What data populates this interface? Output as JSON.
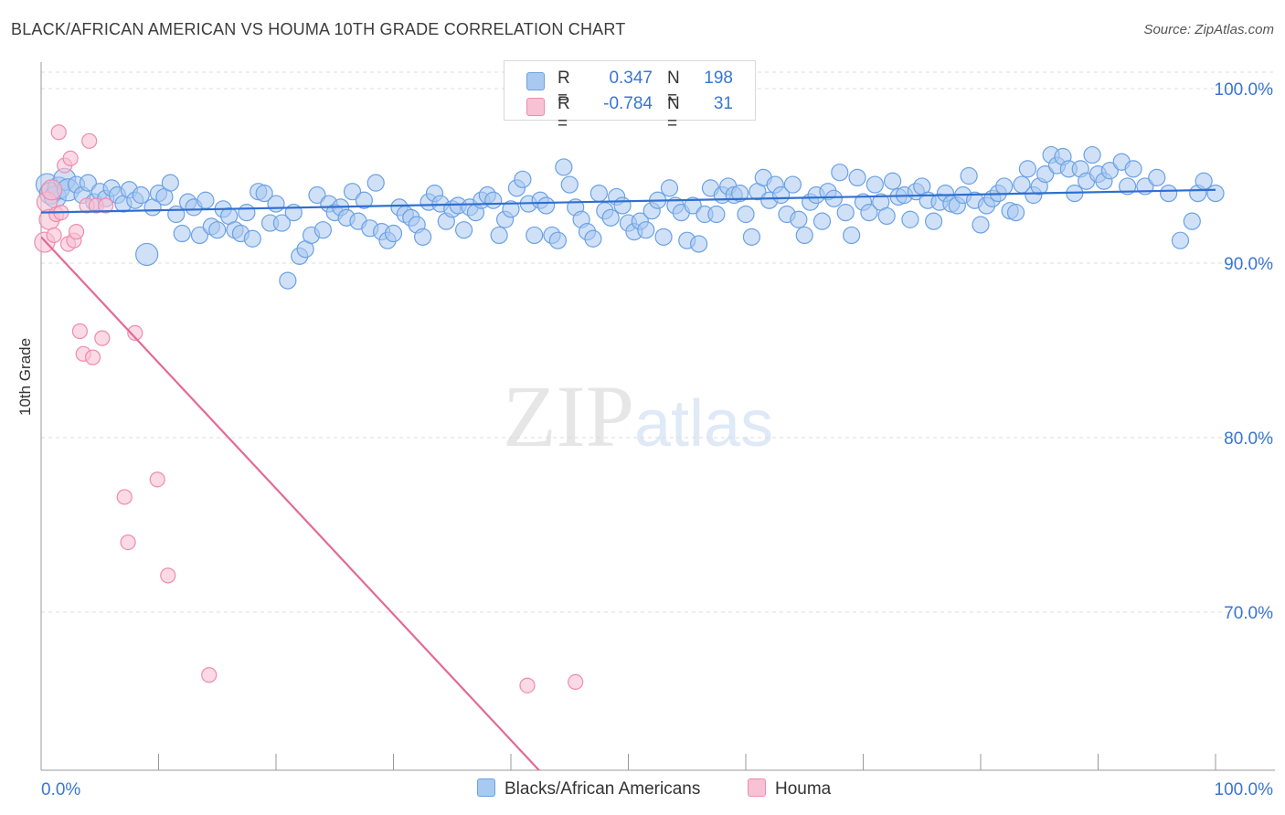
{
  "title": "BLACK/AFRICAN AMERICAN VS HOUMA 10TH GRADE CORRELATION CHART",
  "source": "Source: ZipAtlas.com",
  "watermark": {
    "zip": "ZIP",
    "atlas": "atlas"
  },
  "colors": {
    "blue": "#6aa1e6",
    "blue_fill": "#aac9f0",
    "blue_line": "#2f6fd0",
    "pink": "#f08bad",
    "pink_fill": "#f7c2d4",
    "pink_line": "#e46a95",
    "axis_text": "#3a75d1",
    "grid": "#dcdcdc"
  },
  "legend": {
    "rows": [
      {
        "r_label": "R =",
        "r_value": "0.347",
        "n_label": "N =",
        "n_value": "198"
      },
      {
        "r_label": "R =",
        "r_value": "-0.784",
        "n_label": "N =",
        "n_value": "31"
      }
    ]
  },
  "bottom_legend": {
    "series1": "Blacks/African Americans",
    "series2": "Houma"
  },
  "chart_data": {
    "type": "scatter",
    "ylabel": "10th Grade",
    "x_tick_labels": [
      "0.0%",
      "100.0%"
    ],
    "y_tick_labels": [
      "100.0%",
      "90.0%",
      "80.0%",
      "70.0%"
    ],
    "xlim": [
      0,
      100
    ],
    "ylim": [
      60,
      100
    ],
    "series": [
      {
        "name": "Blacks/African Americans",
        "trend": {
          "x": [
            0,
            100
          ],
          "y": [
            92.9,
            94.2
          ]
        },
        "points": [
          [
            0.5,
            94.5
          ],
          [
            0.8,
            94
          ],
          [
            1.2,
            93.8
          ],
          [
            1.5,
            94.3
          ],
          [
            2,
            94.8
          ],
          [
            2.3,
            94.2
          ],
          [
            3,
            94.5
          ],
          [
            3.5,
            93.9
          ],
          [
            4,
            94.6
          ],
          [
            4.5,
            93.5
          ],
          [
            5,
            94.1
          ],
          [
            5.5,
            93.7
          ],
          [
            6,
            94.3
          ],
          [
            6.5,
            93.9
          ],
          [
            7,
            93.4
          ],
          [
            7.5,
            94.2
          ],
          [
            8,
            93.6
          ],
          [
            8.5,
            93.9
          ],
          [
            9,
            90.5
          ],
          [
            9.5,
            93.2
          ],
          [
            10,
            94
          ],
          [
            10.5,
            93.8
          ],
          [
            11,
            94.6
          ],
          [
            11.5,
            92.8
          ],
          [
            12,
            91.7
          ],
          [
            12.5,
            93.5
          ],
          [
            13,
            93.2
          ],
          [
            13.5,
            91.6
          ],
          [
            14,
            93.6
          ],
          [
            14.5,
            92.1
          ],
          [
            15,
            91.9
          ],
          [
            15.5,
            93.1
          ],
          [
            16,
            92.7
          ],
          [
            16.5,
            91.9
          ],
          [
            17,
            91.7
          ],
          [
            17.5,
            92.9
          ],
          [
            18,
            91.4
          ],
          [
            18.5,
            94.1
          ],
          [
            19,
            94
          ],
          [
            19.5,
            92.3
          ],
          [
            20,
            93.4
          ],
          [
            20.5,
            92.3
          ],
          [
            21,
            89
          ],
          [
            21.5,
            92.9
          ],
          [
            22,
            90.4
          ],
          [
            22.5,
            90.8
          ],
          [
            23,
            91.6
          ],
          [
            23.5,
            93.9
          ],
          [
            24,
            91.9
          ],
          [
            24.5,
            93.4
          ],
          [
            25,
            92.9
          ],
          [
            25.5,
            93.2
          ],
          [
            26,
            92.6
          ],
          [
            26.5,
            94.1
          ],
          [
            27,
            92.4
          ],
          [
            27.5,
            93.6
          ],
          [
            28,
            92
          ],
          [
            28.5,
            94.6
          ],
          [
            29,
            91.8
          ],
          [
            29.5,
            91.3
          ],
          [
            30,
            91.7
          ],
          [
            30.5,
            93.2
          ],
          [
            31,
            92.8
          ],
          [
            31.5,
            92.6
          ],
          [
            32,
            92.2
          ],
          [
            32.5,
            91.5
          ],
          [
            33,
            93.5
          ],
          [
            33.5,
            94
          ],
          [
            34,
            93.4
          ],
          [
            34.5,
            92.4
          ],
          [
            35,
            93.1
          ],
          [
            35.5,
            93.3
          ],
          [
            36,
            91.9
          ],
          [
            36.5,
            93.2
          ],
          [
            37,
            92.9
          ],
          [
            37.5,
            93.6
          ],
          [
            38,
            93.9
          ],
          [
            38.5,
            93.6
          ],
          [
            39,
            91.6
          ],
          [
            39.5,
            92.5
          ],
          [
            40,
            93.1
          ],
          [
            40.5,
            94.3
          ],
          [
            41,
            94.8
          ],
          [
            41.5,
            93.4
          ],
          [
            42,
            91.6
          ],
          [
            42.5,
            93.6
          ],
          [
            43,
            93.3
          ],
          [
            43.5,
            91.6
          ],
          [
            44,
            91.3
          ],
          [
            44.5,
            95.5
          ],
          [
            45,
            94.5
          ],
          [
            45.5,
            93.2
          ],
          [
            46,
            92.5
          ],
          [
            46.5,
            91.8
          ],
          [
            47,
            91.4
          ],
          [
            47.5,
            94
          ],
          [
            48,
            93
          ],
          [
            48.5,
            92.6
          ],
          [
            49,
            93.8
          ],
          [
            49.5,
            93.3
          ],
          [
            50,
            92.3
          ],
          [
            50.5,
            91.8
          ],
          [
            51,
            92.4
          ],
          [
            51.5,
            91.9
          ],
          [
            52,
            93
          ],
          [
            52.5,
            93.6
          ],
          [
            53,
            91.5
          ],
          [
            53.5,
            94.3
          ],
          [
            54,
            93.3
          ],
          [
            54.5,
            92.9
          ],
          [
            55,
            91.3
          ],
          [
            55.5,
            93.3
          ],
          [
            56,
            91.1
          ],
          [
            56.5,
            92.8
          ],
          [
            57,
            94.3
          ],
          [
            57.5,
            92.8
          ],
          [
            58,
            93.9
          ],
          [
            58.5,
            94.4
          ],
          [
            59,
            93.9
          ],
          [
            59.5,
            94
          ],
          [
            60,
            92.8
          ],
          [
            60.5,
            91.5
          ],
          [
            61,
            94.1
          ],
          [
            61.5,
            94.9
          ],
          [
            62,
            93.6
          ],
          [
            62.5,
            94.5
          ],
          [
            63,
            93.9
          ],
          [
            63.5,
            92.8
          ],
          [
            64,
            94.5
          ],
          [
            64.5,
            92.5
          ],
          [
            65,
            91.6
          ],
          [
            65.5,
            93.5
          ],
          [
            66,
            93.9
          ],
          [
            66.5,
            92.4
          ],
          [
            67,
            94.1
          ],
          [
            67.5,
            93.7
          ],
          [
            68,
            95.2
          ],
          [
            68.5,
            92.9
          ],
          [
            69,
            91.6
          ],
          [
            69.5,
            94.9
          ],
          [
            70,
            93.5
          ],
          [
            70.5,
            92.9
          ],
          [
            71,
            94.5
          ],
          [
            71.5,
            93.5
          ],
          [
            72,
            92.7
          ],
          [
            72.5,
            94.7
          ],
          [
            73,
            93.8
          ],
          [
            73.5,
            93.9
          ],
          [
            74,
            92.5
          ],
          [
            74.5,
            94.1
          ],
          [
            75,
            94.4
          ],
          [
            75.5,
            93.6
          ],
          [
            76,
            92.4
          ],
          [
            76.5,
            93.5
          ],
          [
            77,
            94
          ],
          [
            77.5,
            93.4
          ],
          [
            78,
            93.3
          ],
          [
            78.5,
            93.9
          ],
          [
            79,
            95
          ],
          [
            79.5,
            93.6
          ],
          [
            80,
            92.2
          ],
          [
            80.5,
            93.3
          ],
          [
            81,
            93.7
          ],
          [
            81.5,
            94
          ],
          [
            82,
            94.4
          ],
          [
            82.5,
            93
          ],
          [
            83,
            92.9
          ],
          [
            83.5,
            94.5
          ],
          [
            84,
            95.4
          ],
          [
            84.5,
            93.9
          ],
          [
            85,
            94.4
          ],
          [
            85.5,
            95.1
          ],
          [
            86,
            96.2
          ],
          [
            86.5,
            95.6
          ],
          [
            87,
            96.1
          ],
          [
            87.5,
            95.4
          ],
          [
            88,
            94
          ],
          [
            88.5,
            95.4
          ],
          [
            89,
            94.7
          ],
          [
            89.5,
            96.2
          ],
          [
            90,
            95.1
          ],
          [
            90.5,
            94.7
          ],
          [
            91,
            95.3
          ],
          [
            92,
            95.8
          ],
          [
            92.5,
            94.4
          ],
          [
            93,
            95.4
          ],
          [
            94,
            94.4
          ],
          [
            95,
            94.9
          ],
          [
            96,
            94
          ],
          [
            97,
            91.3
          ],
          [
            98,
            92.4
          ],
          [
            98.5,
            94
          ],
          [
            99,
            94.7
          ],
          [
            100,
            94
          ]
        ]
      },
      {
        "name": "Houma",
        "trend": {
          "x": [
            0,
            43.7
          ],
          "y": [
            91.5,
            60
          ]
        },
        "points": [
          [
            0.3,
            91.2
          ],
          [
            0.5,
            93.5
          ],
          [
            0.7,
            92.5
          ],
          [
            0.9,
            94.2
          ],
          [
            1.1,
            91.6
          ],
          [
            1.3,
            92.8
          ],
          [
            1.5,
            97.5
          ],
          [
            1.7,
            92.9
          ],
          [
            2,
            95.6
          ],
          [
            2.3,
            91.1
          ],
          [
            2.5,
            96
          ],
          [
            2.8,
            91.3
          ],
          [
            3,
            91.8
          ],
          [
            3.3,
            86.1
          ],
          [
            3.6,
            84.8
          ],
          [
            3.9,
            93.3
          ],
          [
            4.1,
            97
          ],
          [
            4.4,
            84.6
          ],
          [
            4.7,
            93.3
          ],
          [
            5.2,
            85.7
          ],
          [
            5.5,
            93.3
          ],
          [
            7.1,
            76.6
          ],
          [
            7.4,
            74
          ],
          [
            8,
            86
          ],
          [
            9.9,
            77.6
          ],
          [
            10.8,
            72.1
          ],
          [
            14.3,
            66.4
          ],
          [
            41.4,
            65.8
          ],
          [
            45.5,
            66
          ]
        ]
      }
    ]
  }
}
